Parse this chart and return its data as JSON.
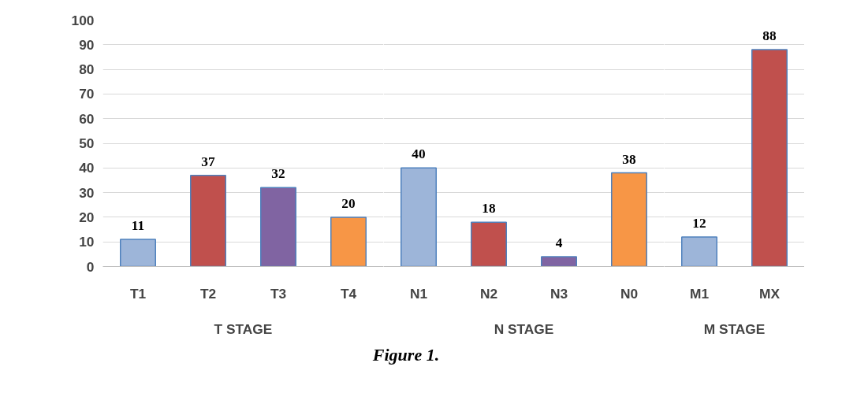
{
  "chart_data": [
    {
      "type": "bar",
      "categories": [
        "T1",
        "T2",
        "T3",
        "T4"
      ],
      "values": [
        11,
        37,
        32,
        20
      ],
      "colors": [
        "#9db5d9",
        "#c0504d",
        "#8064a2",
        "#f79646"
      ],
      "xlabel": "T STAGE",
      "ylim": [
        0,
        100
      ],
      "yticks": [
        0,
        10,
        20,
        30,
        40,
        50,
        60,
        70,
        80,
        90,
        100
      ],
      "grid": "y",
      "data_labels": true,
      "annotations": [
        "Figure 1."
      ]
    },
    {
      "type": "bar",
      "categories": [
        "N1",
        "N2",
        "N3",
        "N0"
      ],
      "values": [
        40,
        18,
        4,
        38
      ],
      "colors": [
        "#9db5d9",
        "#c0504d",
        "#8064a2",
        "#f79646"
      ],
      "xlabel": "N STAGE",
      "ylim": [
        0,
        100
      ],
      "yticks": [
        0,
        10,
        20,
        30,
        40,
        50,
        60,
        70,
        80,
        90,
        100
      ],
      "grid": "y",
      "data_labels": true,
      "tick_labels": "x"
    },
    {
      "type": "bar",
      "categories": [
        "M1",
        "MX"
      ],
      "values": [
        12,
        88
      ],
      "colors": [
        "#9db5d9",
        "#c0504d"
      ],
      "xlabel": "M STAGE",
      "ylim": [
        0,
        100
      ],
      "yticks": [
        0,
        10,
        20,
        30,
        40,
        50,
        60,
        70,
        80,
        90,
        100
      ],
      "grid": "y",
      "data_labels": true,
      "tick_labels": "x"
    }
  ]
}
